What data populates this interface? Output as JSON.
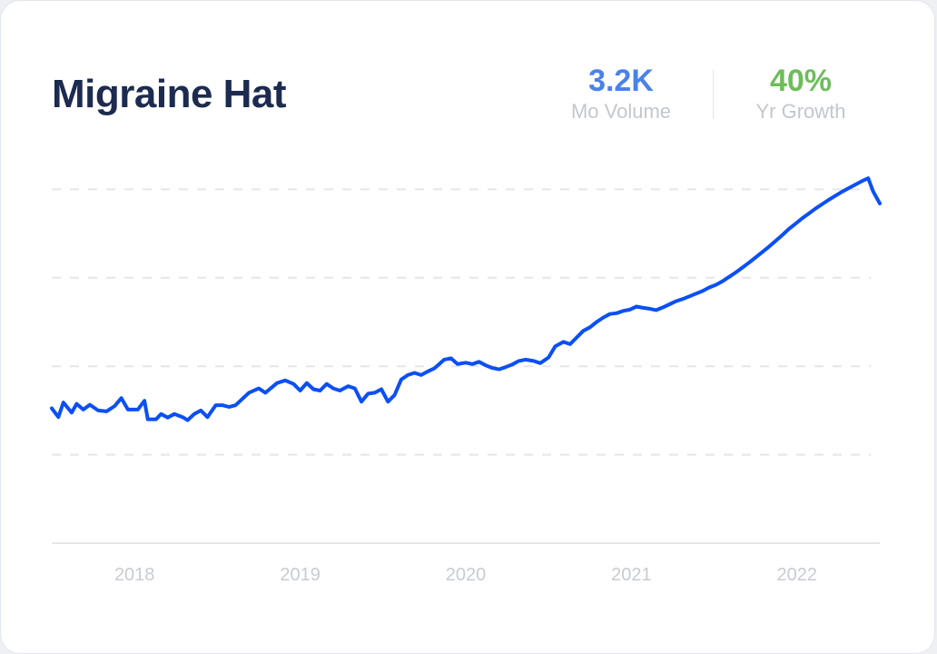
{
  "card": {
    "title": "Migraine Hat",
    "volume": {
      "value": "3.2K",
      "label": "Mo Volume"
    },
    "growth": {
      "value": "40%",
      "label": "Yr Growth"
    }
  },
  "colors": {
    "title": "#1c2b4f",
    "volume": "#4a82e9",
    "growth": "#6dbd5a",
    "line": "#0b4ff5",
    "grid": "#e3e6ea",
    "axis_label": "#c7ccd2"
  },
  "chart_data": {
    "type": "line",
    "title": "",
    "xlabel": "",
    "ylabel": "",
    "x_tick_labels": [
      "2018",
      "2019",
      "2020",
      "2021",
      "2022"
    ],
    "x_range": [
      2017.67,
      2022.67
    ],
    "y_range": [
      0,
      100
    ],
    "grid": "horizontal-dashed",
    "series": [
      {
        "values": [
          [
            2017.67,
            30.5
          ],
          [
            2017.71,
            28.5
          ],
          [
            2017.74,
            31.8
          ],
          [
            2017.79,
            29.5
          ],
          [
            2017.82,
            31.5
          ],
          [
            2017.86,
            30.2
          ],
          [
            2017.9,
            31.3
          ],
          [
            2017.95,
            30.0
          ],
          [
            2018.0,
            29.8
          ],
          [
            2018.05,
            31.0
          ],
          [
            2018.09,
            32.8
          ],
          [
            2018.13,
            30.2
          ],
          [
            2018.19,
            30.2
          ],
          [
            2018.23,
            32.2
          ],
          [
            2018.25,
            28.0
          ],
          [
            2018.3,
            28.0
          ],
          [
            2018.33,
            29.2
          ],
          [
            2018.37,
            28.4
          ],
          [
            2018.41,
            29.2
          ],
          [
            2018.46,
            28.5
          ],
          [
            2018.49,
            27.8
          ],
          [
            2018.53,
            29.2
          ],
          [
            2018.57,
            30.0
          ],
          [
            2018.61,
            28.5
          ],
          [
            2018.66,
            31.2
          ],
          [
            2018.7,
            31.2
          ],
          [
            2018.74,
            30.8
          ],
          [
            2018.78,
            31.2
          ],
          [
            2018.86,
            34.0
          ],
          [
            2018.92,
            35.0
          ],
          [
            2018.96,
            34.0
          ],
          [
            2019.03,
            36.2
          ],
          [
            2019.08,
            36.8
          ],
          [
            2019.13,
            36.0
          ],
          [
            2019.17,
            34.5
          ],
          [
            2019.21,
            36.2
          ],
          [
            2019.25,
            34.8
          ],
          [
            2019.29,
            34.5
          ],
          [
            2019.33,
            36.0
          ],
          [
            2019.37,
            35.0
          ],
          [
            2019.41,
            34.5
          ],
          [
            2019.46,
            35.5
          ],
          [
            2019.5,
            35.0
          ],
          [
            2019.54,
            32.0
          ],
          [
            2019.58,
            33.8
          ],
          [
            2019.62,
            34.0
          ],
          [
            2019.66,
            34.8
          ],
          [
            2019.7,
            32.0
          ],
          [
            2019.74,
            33.5
          ],
          [
            2019.78,
            37.0
          ],
          [
            2019.82,
            38.0
          ],
          [
            2019.86,
            38.5
          ],
          [
            2019.9,
            38.0
          ],
          [
            2019.94,
            38.8
          ],
          [
            2019.98,
            39.5
          ],
          [
            2020.04,
            41.5
          ],
          [
            2020.08,
            41.8
          ],
          [
            2020.12,
            40.5
          ],
          [
            2020.17,
            40.8
          ],
          [
            2020.21,
            40.5
          ],
          [
            2020.25,
            41.0
          ],
          [
            2020.29,
            40.2
          ],
          [
            2020.33,
            39.6
          ],
          [
            2020.37,
            39.3
          ],
          [
            2020.41,
            39.8
          ],
          [
            2020.45,
            40.4
          ],
          [
            2020.49,
            41.2
          ],
          [
            2020.53,
            41.5
          ],
          [
            2020.58,
            41.2
          ],
          [
            2020.62,
            40.7
          ],
          [
            2020.67,
            42.0
          ],
          [
            2020.71,
            44.5
          ],
          [
            2020.76,
            45.5
          ],
          [
            2020.8,
            45.0
          ],
          [
            2020.84,
            46.5
          ],
          [
            2020.88,
            48.0
          ],
          [
            2020.92,
            48.8
          ],
          [
            2020.96,
            50.0
          ],
          [
            2021.0,
            51.0
          ],
          [
            2021.04,
            51.8
          ],
          [
            2021.08,
            52.0
          ],
          [
            2021.12,
            52.5
          ],
          [
            2021.16,
            52.8
          ],
          [
            2021.2,
            53.5
          ],
          [
            2021.24,
            53.2
          ],
          [
            2021.28,
            53.0
          ],
          [
            2021.32,
            52.7
          ],
          [
            2021.36,
            53.3
          ],
          [
            2021.4,
            54.0
          ],
          [
            2021.44,
            54.7
          ],
          [
            2021.48,
            55.2
          ],
          [
            2021.52,
            55.8
          ],
          [
            2021.56,
            56.4
          ],
          [
            2021.6,
            57.0
          ],
          [
            2021.64,
            57.8
          ],
          [
            2021.68,
            58.4
          ],
          [
            2021.72,
            59.2
          ],
          [
            2021.76,
            60.2
          ],
          [
            2021.8,
            61.2
          ],
          [
            2021.84,
            62.3
          ],
          [
            2021.88,
            63.4
          ],
          [
            2021.92,
            64.6
          ],
          [
            2021.96,
            65.8
          ],
          [
            2022.0,
            67.0
          ],
          [
            2022.04,
            68.3
          ],
          [
            2022.08,
            69.6
          ],
          [
            2022.12,
            71.0
          ],
          [
            2022.16,
            72.2
          ],
          [
            2022.2,
            73.4
          ],
          [
            2022.24,
            74.5
          ],
          [
            2022.28,
            75.6
          ],
          [
            2022.32,
            76.6
          ],
          [
            2022.36,
            77.6
          ],
          [
            2022.4,
            78.5
          ],
          [
            2022.44,
            79.4
          ],
          [
            2022.48,
            80.2
          ],
          [
            2022.52,
            81.0
          ],
          [
            2022.56,
            81.8
          ],
          [
            2022.6,
            82.5
          ],
          [
            2022.63,
            79.5
          ],
          [
            2022.67,
            76.8
          ]
        ]
      }
    ]
  }
}
